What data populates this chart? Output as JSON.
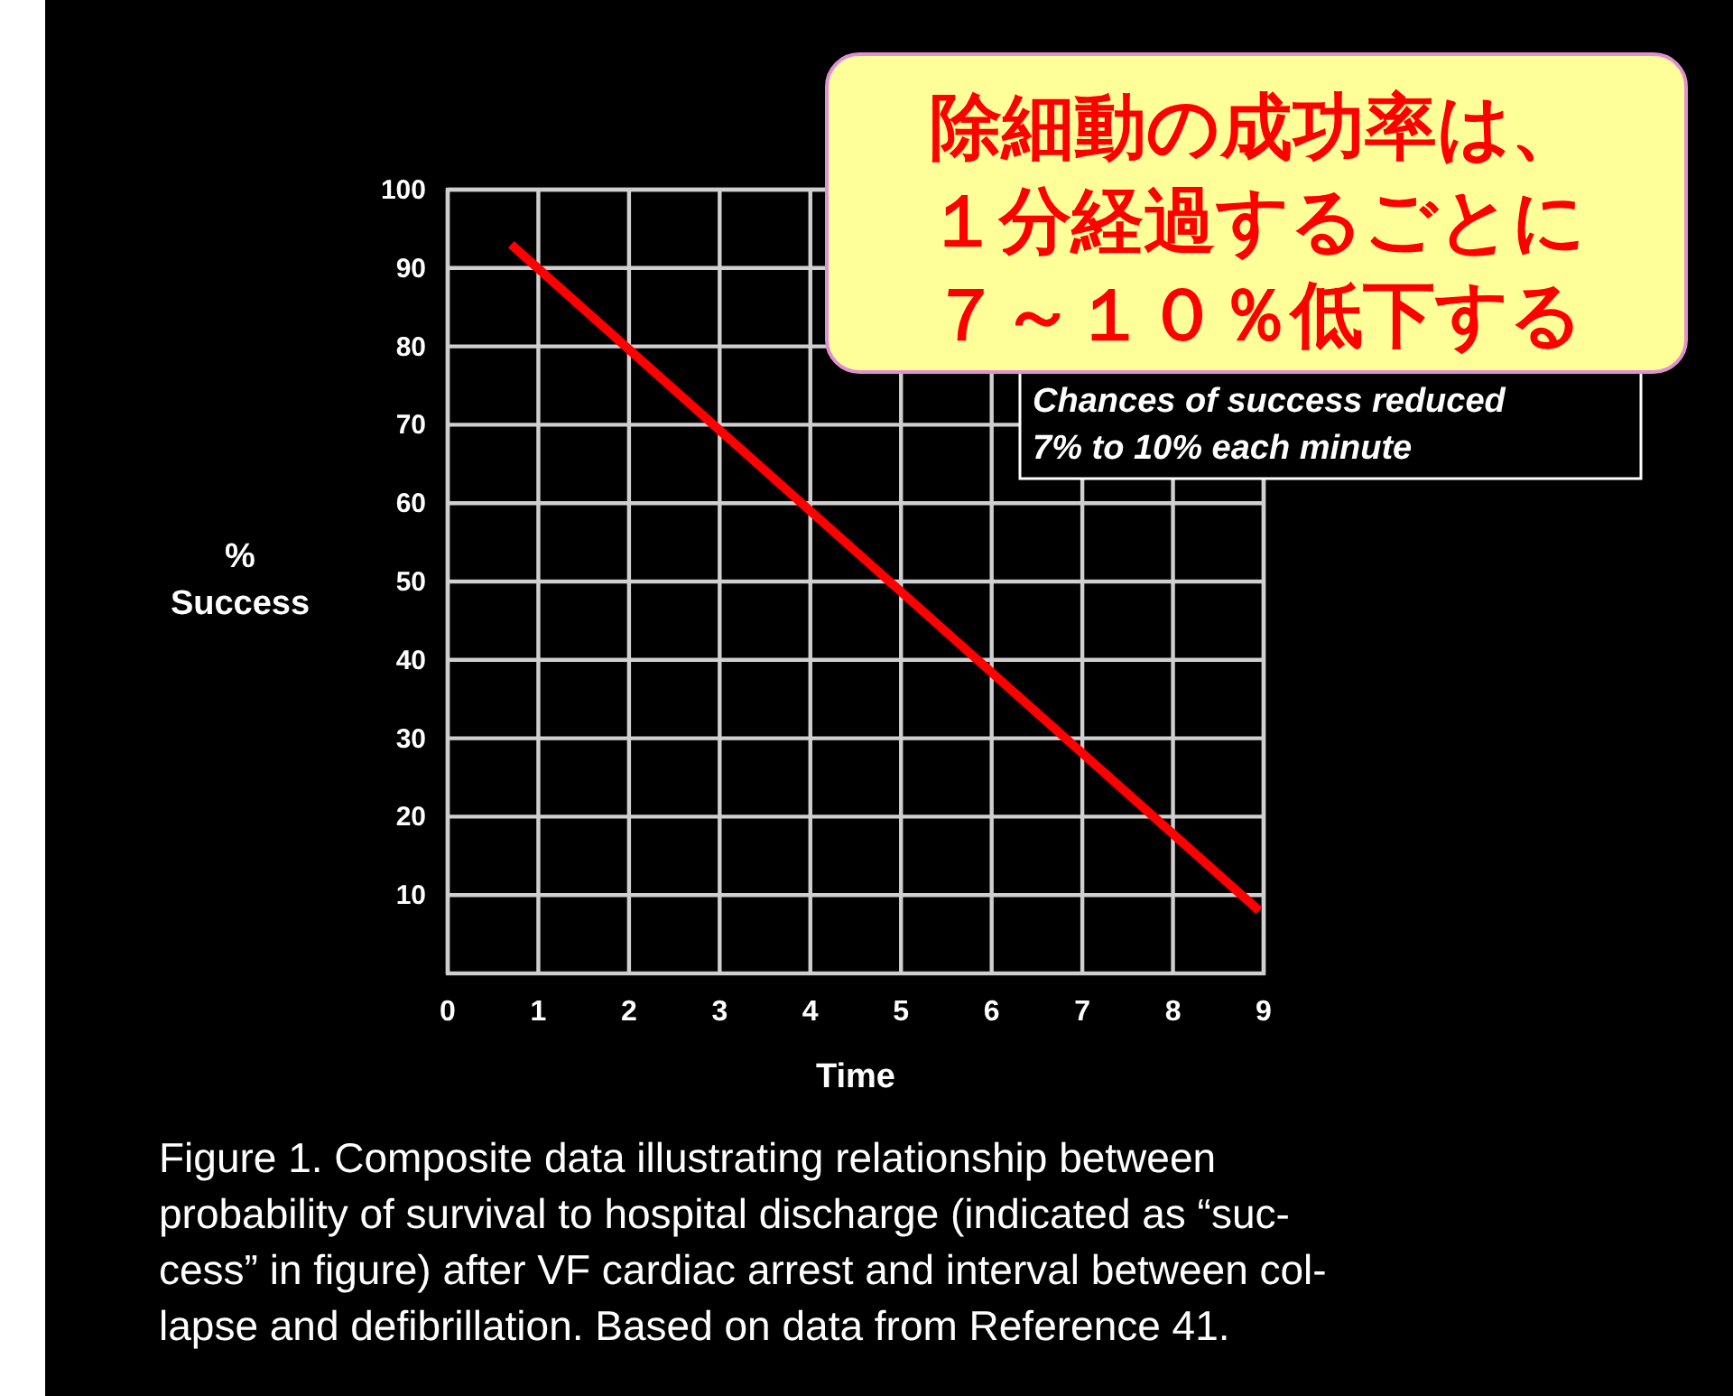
{
  "chart_data": {
    "type": "line",
    "xlabel": "Time",
    "ylabel": "%\nSuccess",
    "xlim": [
      0,
      9
    ],
    "xticks": [
      0,
      1,
      2,
      3,
      4,
      5,
      6,
      7,
      8,
      9
    ],
    "ylim": [
      0,
      100
    ],
    "yticks": [
      10,
      20,
      30,
      40,
      50,
      60,
      70,
      80,
      90,
      100
    ],
    "grid": true,
    "marker": "none",
    "line_style": "solid",
    "series": [
      {
        "color": "#ff0000",
        "x": [
          0.7,
          8.95
        ],
        "values": [
          93,
          8
        ]
      }
    ],
    "annotations": [
      "除細動の成功率は、１分経過するごとに７～１０％低下する",
      "Chances of success reduced\n7% to 10% each minute",
      "Figure 1. Composite data illustrating relationship between\nprobability of survival to hospital discharge (indicated as “suc-\ncess” in figure) after VF cardiac arrest and interval between col-\nlapse and defibrillation. Based on data from Reference 41."
    ]
  }
}
